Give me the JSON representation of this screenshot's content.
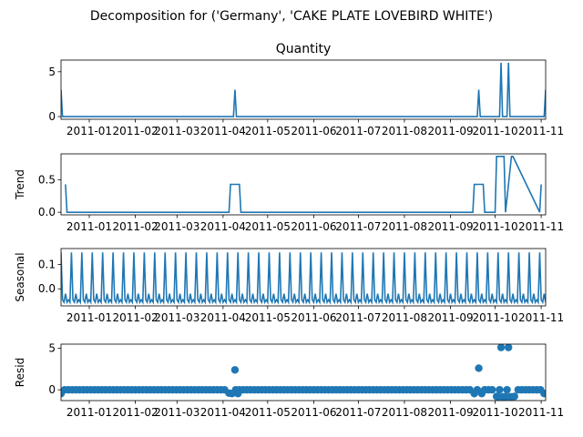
{
  "figure": {
    "suptitle": "Decomposition for ('Germany', 'CAKE PLATE LOVEBIRD WHITE')",
    "line_color": "#1f77b4"
  },
  "chart_data": [
    {
      "type": "line",
      "title": "Quantity",
      "ylabel": "",
      "x_range": [
        "2010-12-13",
        "2011-11-04"
      ],
      "ylim": [
        -0.3,
        6.3
      ],
      "yticks": [
        0,
        5
      ],
      "xtick_labels": [
        "2011-01",
        "2011-02",
        "2011-03",
        "2011-04",
        "2011-05",
        "2011-06",
        "2011-07",
        "2011-08",
        "2011-09",
        "2011-10",
        "2011-11"
      ],
      "series": [
        {
          "x": [
            "2010-12-13",
            "2010-12-14",
            "2011-04-08",
            "2011-04-09",
            "2011-04-10",
            "2011-09-19",
            "2011-09-20",
            "2011-09-21",
            "2011-10-04",
            "2011-10-05",
            "2011-10-06",
            "2011-10-09",
            "2011-10-10",
            "2011-10-11",
            "2011-11-03",
            "2011-11-04"
          ],
          "values": [
            3,
            0,
            0,
            3,
            0,
            0,
            3,
            0,
            0,
            6,
            0,
            0,
            6,
            0,
            0,
            3
          ]
        }
      ]
    },
    {
      "type": "line",
      "title": "",
      "ylabel": "Trend",
      "x_range": [
        "2010-12-13",
        "2011-11-04"
      ],
      "ylim": [
        -0.04,
        0.9
      ],
      "yticks": [
        0.0,
        0.5
      ],
      "ytick_labels": [
        "0.0",
        "0.5"
      ],
      "xtick_labels": [
        "2011-01",
        "2011-02",
        "2011-03",
        "2011-04",
        "2011-05",
        "2011-06",
        "2011-07",
        "2011-08",
        "2011-09",
        "2011-10",
        "2011-11"
      ],
      "series": [
        {
          "x": [
            "2010-12-16",
            "2010-12-17",
            "2011-04-05",
            "2011-04-06",
            "2011-04-12",
            "2011-04-13",
            "2011-09-16",
            "2011-09-17",
            "2011-09-23",
            "2011-09-24",
            "2011-10-01",
            "2011-10-02",
            "2011-10-07",
            "2011-10-08",
            "2011-10-12",
            "2011-10-13",
            "2011-10-31",
            "2011-11-01"
          ],
          "values": [
            0.43,
            0,
            0,
            0.43,
            0.43,
            0,
            0,
            0.43,
            0.43,
            0,
            0,
            0.86,
            0.86,
            0,
            0.86,
            0.86,
            0,
            0.43
          ]
        }
      ]
    },
    {
      "type": "line",
      "title": "",
      "ylabel": "Seasonal",
      "x_range": [
        "2010-12-13",
        "2011-11-04"
      ],
      "ylim": [
        -0.07,
        0.165
      ],
      "yticks": [
        0.0,
        0.1
      ],
      "ytick_labels": [
        "0.0",
        "0.1"
      ],
      "xtick_labels": [
        "2011-01",
        "2011-02",
        "2011-03",
        "2011-04",
        "2011-05",
        "2011-06",
        "2011-07",
        "2011-08",
        "2011-09",
        "2011-10",
        "2011-11"
      ],
      "seasonal_pattern": {
        "period_days": 7,
        "start": "2010-12-13",
        "values": [
          0.149,
          -0.045,
          -0.055,
          -0.02,
          -0.055,
          -0.045,
          -0.055
        ]
      }
    },
    {
      "type": "scatter",
      "title": "",
      "ylabel": "Resid",
      "x_range": [
        "2010-12-13",
        "2011-11-04"
      ],
      "ylim": [
        -1.3,
        5.5
      ],
      "yticks": [
        0,
        5
      ],
      "xtick_labels": [
        "2011-01",
        "2011-02",
        "2011-03",
        "2011-04",
        "2011-05",
        "2011-06",
        "2011-07",
        "2011-08",
        "2011-09",
        "2011-10",
        "2011-11"
      ],
      "baseline_points": {
        "from": "2010-12-13",
        "to": "2011-11-04",
        "step_days": 2.5,
        "value": 0
      },
      "points": [
        {
          "x": "2010-12-13",
          "y": -0.45
        },
        {
          "x": "2011-04-05",
          "y": -0.4
        },
        {
          "x": "2011-04-07",
          "y": -0.45
        },
        {
          "x": "2011-04-09",
          "y": 2.4
        },
        {
          "x": "2011-04-11",
          "y": -0.45
        },
        {
          "x": "2011-09-17",
          "y": -0.45
        },
        {
          "x": "2011-09-20",
          "y": 2.6
        },
        {
          "x": "2011-09-22",
          "y": -0.45
        },
        {
          "x": "2011-10-02",
          "y": -0.8
        },
        {
          "x": "2011-10-03",
          "y": -0.85
        },
        {
          "x": "2011-10-05",
          "y": 5.1
        },
        {
          "x": "2011-10-06",
          "y": -0.85
        },
        {
          "x": "2011-10-07",
          "y": -0.85
        },
        {
          "x": "2011-10-08",
          "y": -0.85
        },
        {
          "x": "2011-10-10",
          "y": 5.1
        },
        {
          "x": "2011-10-11",
          "y": -0.85
        },
        {
          "x": "2011-10-12",
          "y": -0.85
        },
        {
          "x": "2011-10-14",
          "y": -0.8
        },
        {
          "x": "2011-11-03",
          "y": -0.45
        }
      ]
    }
  ]
}
